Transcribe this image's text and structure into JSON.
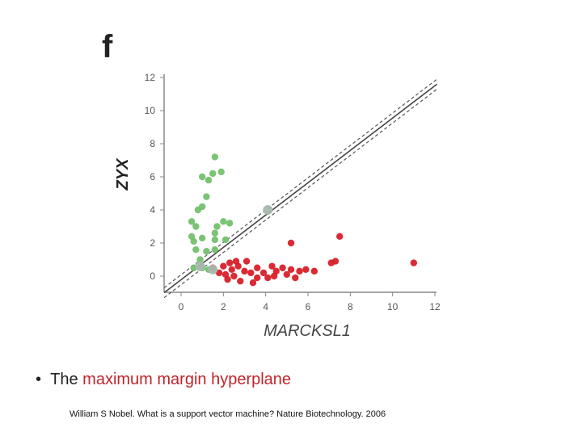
{
  "panel_label": "f",
  "chart_data": {
    "type": "scatter",
    "title": "",
    "xlabel": "MARCKSL1",
    "ylabel": "ZYX",
    "xlim": [
      -1,
      12
    ],
    "ylim": [
      -1,
      12.5
    ],
    "x_ticks": [
      "0",
      "2",
      "4",
      "6",
      "8",
      "10",
      "12"
    ],
    "y_ticks": [
      "0",
      "2",
      "4",
      "6",
      "8",
      "10",
      "12"
    ],
    "grid": false,
    "colors": {
      "green": "#74c06e",
      "red": "#d8202a",
      "support": "#a9b8ad",
      "line": "#555555",
      "axis": "#888888"
    },
    "hyperplane": {
      "x": [
        -0.8,
        12.1
      ],
      "y": [
        -1.0,
        11.6
      ]
    },
    "margin_lower": {
      "x": [
        -0.8,
        12.1
      ],
      "y": [
        -1.3,
        11.3
      ]
    },
    "margin_upper": {
      "x": [
        -0.8,
        12.1
      ],
      "y": [
        -0.7,
        11.9
      ]
    },
    "series": [
      {
        "name": "green",
        "color": "#74c06e",
        "points": [
          [
            1.6,
            7.2
          ],
          [
            1.5,
            6.2
          ],
          [
            1.9,
            6.3
          ],
          [
            1.0,
            6.0
          ],
          [
            1.3,
            5.8
          ],
          [
            1.2,
            4.8
          ],
          [
            1.0,
            4.2
          ],
          [
            0.8,
            4.0
          ],
          [
            0.5,
            3.3
          ],
          [
            0.7,
            3.0
          ],
          [
            1.7,
            3.0
          ],
          [
            1.6,
            2.6
          ],
          [
            2.3,
            3.2
          ],
          [
            2.0,
            3.3
          ],
          [
            1.6,
            2.2
          ],
          [
            1.0,
            2.3
          ],
          [
            0.6,
            2.1
          ],
          [
            0.5,
            2.4
          ],
          [
            1.6,
            1.6
          ],
          [
            0.7,
            1.6
          ],
          [
            1.2,
            1.5
          ],
          [
            2.1,
            2.2
          ],
          [
            0.9,
            1.0
          ],
          [
            0.6,
            0.5
          ],
          [
            1.0,
            0.5
          ],
          [
            1.3,
            0.4
          ]
        ]
      },
      {
        "name": "red",
        "color": "#d8202a",
        "points": [
          [
            1.5,
            0.5
          ],
          [
            1.8,
            0.2
          ],
          [
            2.0,
            0.6
          ],
          [
            2.1,
            0.1
          ],
          [
            2.3,
            0.8
          ],
          [
            2.4,
            0.4
          ],
          [
            2.5,
            0.0
          ],
          [
            2.7,
            0.6
          ],
          [
            2.8,
            -0.3
          ],
          [
            3.0,
            0.3
          ],
          [
            3.1,
            0.9
          ],
          [
            3.3,
            0.2
          ],
          [
            3.4,
            -0.4
          ],
          [
            3.6,
            0.5
          ],
          [
            3.9,
            0.2
          ],
          [
            4.1,
            -0.1
          ],
          [
            4.3,
            0.6
          ],
          [
            4.5,
            0.3
          ],
          [
            4.8,
            0.5
          ],
          [
            5.0,
            0.1
          ],
          [
            5.2,
            0.4
          ],
          [
            5.4,
            -0.1
          ],
          [
            5.6,
            0.3
          ],
          [
            5.9,
            0.4
          ],
          [
            6.3,
            0.3
          ],
          [
            7.1,
            0.8
          ],
          [
            7.3,
            0.9
          ],
          [
            7.5,
            2.4
          ],
          [
            5.2,
            2.0
          ],
          [
            2.2,
            -0.2
          ],
          [
            2.6,
            0.9
          ],
          [
            3.6,
            -0.1
          ],
          [
            4.4,
            0.0
          ],
          [
            11.0,
            0.8
          ]
        ]
      },
      {
        "name": "support-vectors",
        "color": "#a9b8ad",
        "points": [
          [
            0.9,
            0.6
          ],
          [
            4.1,
            4.0
          ],
          [
            1.5,
            0.4
          ]
        ]
      }
    ]
  },
  "caption": {
    "bullet": "•",
    "prefix": "The ",
    "highlight": "maximum margin hyperplane"
  },
  "citation": "William S Nobel. What is a support vector machine? Nature Biotechnology. 2006"
}
